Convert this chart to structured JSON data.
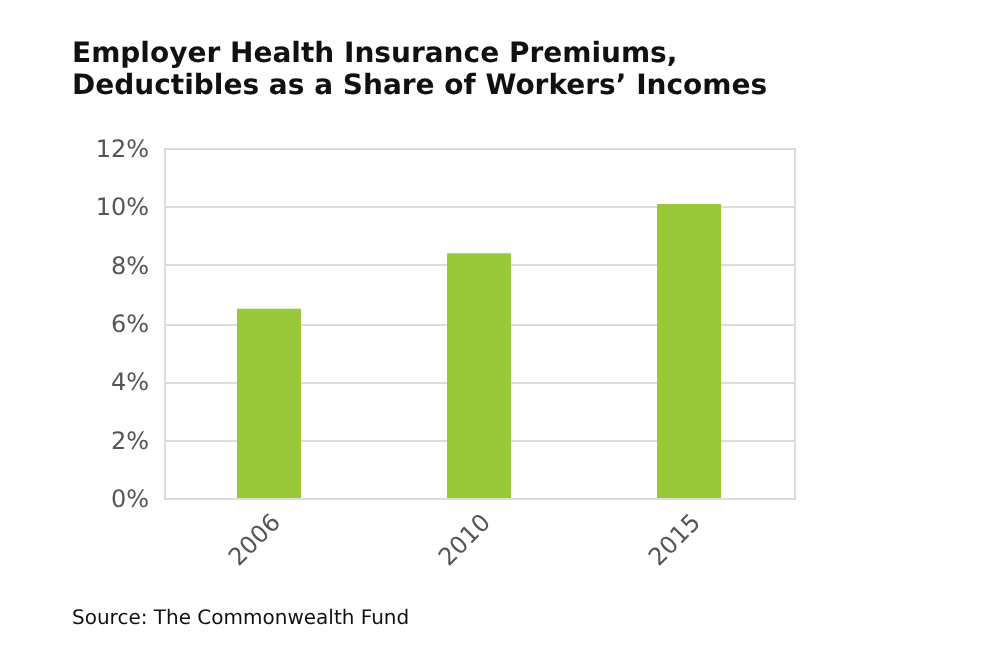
{
  "chart_data": {
    "type": "bar",
    "title": "Employer Health Insurance Premiums,\nDeductibles as a Share of Workers’ Incomes",
    "categories": [
      "2006",
      "2010",
      "2015"
    ],
    "values": [
      6.49,
      8.39,
      10.08
    ],
    "color": "#9bc83a",
    "ylim": [
      0,
      12
    ],
    "yticks": [
      {
        "value": 0,
        "label": "0%"
      },
      {
        "value": 2,
        "label": "2%"
      },
      {
        "value": 4,
        "label": "4%"
      },
      {
        "value": 6,
        "label": "6%"
      },
      {
        "value": 8,
        "label": "8%"
      },
      {
        "value": 10,
        "label": "10%"
      },
      {
        "value": 12,
        "label": "12%"
      }
    ],
    "grid": "y",
    "annotations": [
      "Source: The Commonwealth Fund"
    ]
  }
}
